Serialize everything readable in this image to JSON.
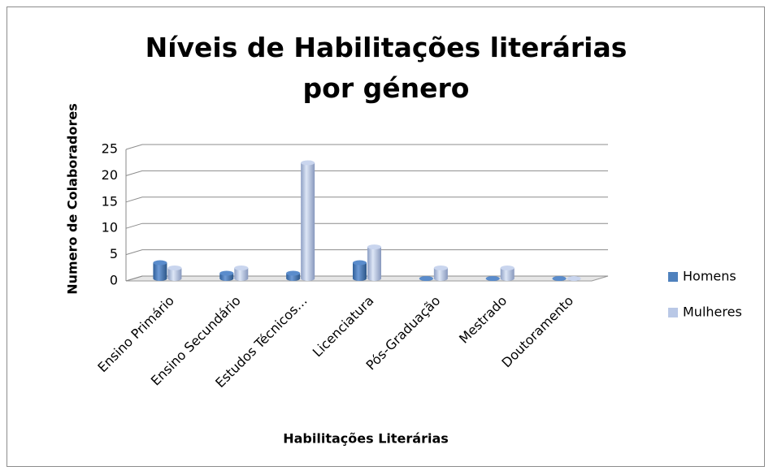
{
  "chart_data": {
    "type": "bar",
    "title": "Níveis de Habilitações literárias por género",
    "x_label": "Habilitações Literárias",
    "y_label": "Numero de Colaboradores",
    "categories": [
      "Ensino Primário",
      "Ensino Secundário",
      "Estudos Técnicos…",
      "Licenciatura",
      "Pós-Graduação",
      "Mestrado",
      "Doutoramento"
    ],
    "series": [
      {
        "name": "Homens",
        "color": "#4f81bd",
        "values": [
          3,
          1,
          1,
          3,
          0,
          0,
          0
        ]
      },
      {
        "name": "Mulheres",
        "color": "#b9c8e6",
        "values": [
          2,
          2,
          22,
          6,
          2,
          2,
          0
        ]
      }
    ],
    "ylim": [
      0,
      25
    ],
    "yticks": [
      0,
      5,
      10,
      15,
      20,
      25
    ],
    "grid": true,
    "legend": "right"
  }
}
